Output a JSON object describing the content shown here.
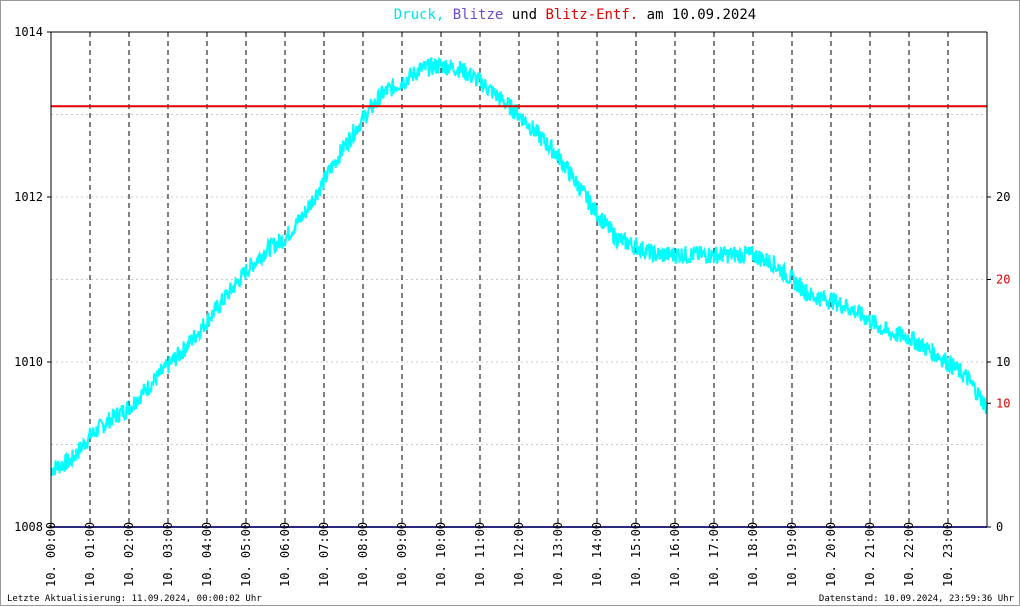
{
  "title": {
    "parts": [
      {
        "text": "Druck,",
        "color": "#00e5e5"
      },
      {
        "text": " Blitze",
        "color": "#6a4ad0"
      },
      {
        "text": " und ",
        "color": "#000000"
      },
      {
        "text": "Blitz-Entf.",
        "color": "#e00000"
      },
      {
        "text": " am 10.09.2024",
        "color": "#000000"
      }
    ]
  },
  "footer": {
    "left": "Letzte Aktualisierung: 11.09.2024, 00:00:02 Uhr",
    "right": "Datenstand: 10.09.2024, 23:59:36 Uhr"
  },
  "chart_data": {
    "type": "line",
    "x_ticks": [
      "10. 00:00",
      "10. 01:00",
      "10. 02:00",
      "10. 03:00",
      "10. 04:00",
      "10. 05:00",
      "10. 06:00",
      "10. 07:00",
      "10. 08:00",
      "10. 09:00",
      "10. 10:00",
      "10. 11:00",
      "10. 12:00",
      "10. 13:00",
      "10. 14:00",
      "10. 15:00",
      "10. 16:00",
      "10. 17:00",
      "10. 18:00",
      "10. 19:00",
      "10. 20:00",
      "10. 21:00",
      "10. 22:00",
      "10. 23:00"
    ],
    "xlim_hours": [
      0,
      24
    ],
    "y_left": {
      "ticks": [
        "1014",
        "1012",
        "1010",
        "1008"
      ],
      "values": [
        1014,
        1012,
        1010,
        1008
      ],
      "ylim": [
        1008,
        1014
      ],
      "color": "#000000"
    },
    "y_right_black": {
      "ticks": [
        "20",
        "10",
        "0"
      ],
      "values": [
        20,
        10,
        0
      ],
      "ylim": [
        0,
        30
      ],
      "color": "#000000"
    },
    "y_right_red": {
      "ticks": [
        "20",
        "10"
      ],
      "values": [
        20,
        10
      ],
      "ylim": [
        0,
        40
      ],
      "color": "#e00000"
    },
    "series": [
      {
        "color": "#00ffff",
        "x_hours": [
          0,
          0.5,
          1,
          1.5,
          2,
          2.5,
          3,
          3.5,
          4,
          4.5,
          5,
          5.5,
          6,
          6.5,
          7,
          7.5,
          8,
          8.5,
          9,
          9.5,
          10,
          10.5,
          11,
          11.5,
          12,
          12.5,
          13,
          13.5,
          14,
          14.5,
          15,
          15.5,
          16,
          16.5,
          17,
          17.5,
          18,
          18.5,
          19,
          19.5,
          20,
          20.5,
          21,
          21.5,
          22,
          22.5,
          23,
          23.5,
          24
        ],
        "values": [
          1008.7,
          1008.8,
          1009.1,
          1009.3,
          1009.45,
          1009.7,
          1009.95,
          1010.2,
          1010.5,
          1010.8,
          1011.1,
          1011.35,
          1011.5,
          1011.8,
          1012.2,
          1012.6,
          1012.95,
          1013.25,
          1013.4,
          1013.55,
          1013.6,
          1013.55,
          1013.4,
          1013.2,
          1013.0,
          1012.75,
          1012.5,
          1012.15,
          1011.8,
          1011.5,
          1011.4,
          1011.3,
          1011.3,
          1011.3,
          1011.3,
          1011.3,
          1011.3,
          1011.2,
          1011.0,
          1010.8,
          1010.75,
          1010.65,
          1010.5,
          1010.35,
          1010.3,
          1010.15,
          1010.0,
          1009.8,
          1009.45
        ]
      },
      {
        "color": "#e00000",
        "axis": "y_right_red",
        "x_hours": [
          0,
          24
        ],
        "values": [
          34,
          34
        ]
      },
      {
        "color": "#2a2a80",
        "axis": "y_right_black",
        "x_hours": [
          0,
          24
        ],
        "values": [
          0,
          0
        ]
      }
    ],
    "grid": true
  }
}
